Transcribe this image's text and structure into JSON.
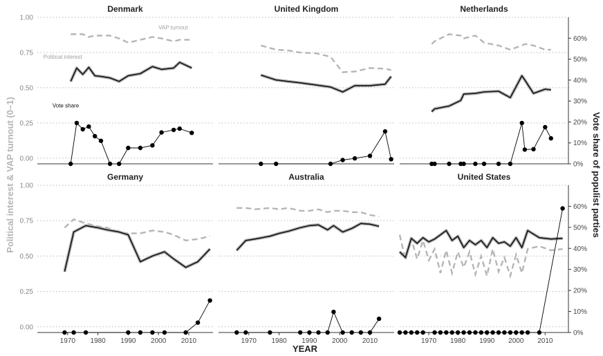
{
  "chart_data": {
    "type": "line",
    "xlabel": "YEAR",
    "ylabel": "Political interest & VAP turnout (0–1)",
    "y2label": "Vote share of populist parties",
    "xlim": [
      1960,
      2018
    ],
    "ylim": [
      -0.04,
      1.0
    ],
    "y2lim": [
      0,
      70
    ],
    "x_ticks": [
      1970,
      1980,
      1990,
      2000,
      2010
    ],
    "x_tick_labels": [
      "1970",
      "1980",
      "1990",
      "2000",
      "2010"
    ],
    "y_ticks": [
      0,
      0.25,
      0.5,
      0.75,
      1.0
    ],
    "y_tick_labels": [
      "0.00",
      "0.25",
      "0.50",
      "0.75",
      "1.00"
    ],
    "y2_ticks": [
      0,
      10,
      20,
      30,
      40,
      50,
      60
    ],
    "y2_tick_labels": [
      "0%",
      "10%",
      "20%",
      "30%",
      "40%",
      "50%",
      "60%"
    ],
    "grid": "horizontal dotted",
    "colors": {
      "interest": "#111111",
      "interest_band": "#b5b5b5",
      "turnout": "#b5b5b5",
      "vote": "#000000"
    },
    "annotations": {
      "turnout": "VAP turnout",
      "interest": "Political interest",
      "vote": "Vote share"
    },
    "panels": [
      {
        "title": "Denmark",
        "interest": [
          [
            1971,
            0.545
          ],
          [
            1973,
            0.64
          ],
          [
            1975,
            0.595
          ],
          [
            1977,
            0.645
          ],
          [
            1979,
            0.585
          ],
          [
            1981,
            0.58
          ],
          [
            1984,
            0.57
          ],
          [
            1987,
            0.545
          ],
          [
            1990,
            0.585
          ],
          [
            1994,
            0.6
          ],
          [
            1998,
            0.65
          ],
          [
            2001,
            0.63
          ],
          [
            2005,
            0.64
          ],
          [
            2007,
            0.68
          ],
          [
            2011,
            0.64
          ]
        ],
        "turnout": [
          [
            1971,
            0.88
          ],
          [
            1975,
            0.88
          ],
          [
            1977,
            0.86
          ],
          [
            1979,
            0.87
          ],
          [
            1984,
            0.87
          ],
          [
            1987,
            0.85
          ],
          [
            1990,
            0.82
          ],
          [
            1994,
            0.84
          ],
          [
            1998,
            0.86
          ],
          [
            2001,
            0.85
          ],
          [
            2005,
            0.83
          ],
          [
            2007,
            0.84
          ],
          [
            2011,
            0.84
          ]
        ],
        "vote": [
          [
            1971,
            0
          ],
          [
            1973,
            19.5
          ],
          [
            1975,
            16.5
          ],
          [
            1977,
            17.8
          ],
          [
            1979,
            13.2
          ],
          [
            1981,
            11.0
          ],
          [
            1984,
            0
          ],
          [
            1987,
            0
          ],
          [
            1990,
            7.6
          ],
          [
            1994,
            7.6
          ],
          [
            1998,
            8.8
          ],
          [
            2001,
            15.0
          ],
          [
            2005,
            16.2
          ],
          [
            2007,
            16.8
          ],
          [
            2011,
            14.8
          ]
        ]
      },
      {
        "title": "United Kingdom",
        "interest": [
          [
            1974,
            0.59
          ],
          [
            1979,
            0.555
          ],
          [
            1983,
            0.545
          ],
          [
            1987,
            0.535
          ],
          [
            1992,
            0.52
          ],
          [
            1997,
            0.505
          ],
          [
            2001,
            0.47
          ],
          [
            2005,
            0.515
          ],
          [
            2010,
            0.515
          ],
          [
            2015,
            0.525
          ],
          [
            2017,
            0.58
          ]
        ],
        "turnout": [
          [
            1974,
            0.8
          ],
          [
            1979,
            0.77
          ],
          [
            1983,
            0.765
          ],
          [
            1987,
            0.75
          ],
          [
            1992,
            0.745
          ],
          [
            1997,
            0.72
          ],
          [
            2001,
            0.61
          ],
          [
            2005,
            0.615
          ],
          [
            2010,
            0.64
          ],
          [
            2015,
            0.635
          ],
          [
            2017,
            0.625
          ]
        ],
        "vote": [
          [
            1974,
            0
          ],
          [
            1979,
            0
          ],
          [
            1997,
            0
          ],
          [
            2001,
            1.8
          ],
          [
            2005,
            2.6
          ],
          [
            2010,
            3.8
          ],
          [
            2015,
            15.5
          ],
          [
            2017,
            2.2
          ]
        ]
      },
      {
        "title": "Netherlands",
        "interest": [
          [
            1971,
            0.33
          ],
          [
            1972,
            0.35
          ],
          [
            1977,
            0.37
          ],
          [
            1981,
            0.41
          ],
          [
            1982,
            0.455
          ],
          [
            1986,
            0.46
          ],
          [
            1989,
            0.47
          ],
          [
            1994,
            0.475
          ],
          [
            1998,
            0.43
          ],
          [
            2002,
            0.585
          ],
          [
            2003,
            0.555
          ],
          [
            2006,
            0.46
          ],
          [
            2010,
            0.49
          ],
          [
            2012,
            0.485
          ]
        ],
        "turnout": [
          [
            1971,
            0.81
          ],
          [
            1972,
            0.83
          ],
          [
            1977,
            0.88
          ],
          [
            1981,
            0.87
          ],
          [
            1982,
            0.85
          ],
          [
            1986,
            0.87
          ],
          [
            1989,
            0.82
          ],
          [
            1994,
            0.8
          ],
          [
            1998,
            0.77
          ],
          [
            2002,
            0.8
          ],
          [
            2003,
            0.81
          ],
          [
            2006,
            0.8
          ],
          [
            2010,
            0.77
          ],
          [
            2012,
            0.77
          ]
        ],
        "vote": [
          [
            1971,
            0
          ],
          [
            1972,
            0
          ],
          [
            1977,
            0
          ],
          [
            1981,
            0
          ],
          [
            1982,
            0
          ],
          [
            1986,
            0
          ],
          [
            1989,
            0
          ],
          [
            1994,
            0
          ],
          [
            1998,
            0
          ],
          [
            2002,
            19.5
          ],
          [
            2003,
            6.8
          ],
          [
            2006,
            7.0
          ],
          [
            2010,
            17.5
          ],
          [
            2012,
            12.2
          ]
        ]
      },
      {
        "title": "Germany",
        "interest": [
          [
            1969,
            0.39
          ],
          [
            1972,
            0.67
          ],
          [
            1976,
            0.715
          ],
          [
            1980,
            0.7
          ],
          [
            1983,
            0.685
          ],
          [
            1987,
            0.67
          ],
          [
            1990,
            0.65
          ],
          [
            1994,
            0.46
          ],
          [
            1998,
            0.5
          ],
          [
            2002,
            0.53
          ],
          [
            2005,
            0.48
          ],
          [
            2009,
            0.42
          ],
          [
            2013,
            0.46
          ],
          [
            2017,
            0.55
          ]
        ],
        "turnout": [
          [
            1969,
            0.7
          ],
          [
            1972,
            0.76
          ],
          [
            1976,
            0.73
          ],
          [
            1980,
            0.71
          ],
          [
            1983,
            0.7
          ],
          [
            1987,
            0.67
          ],
          [
            1990,
            0.66
          ],
          [
            1994,
            0.66
          ],
          [
            1998,
            0.68
          ],
          [
            2002,
            0.67
          ],
          [
            2005,
            0.65
          ],
          [
            2009,
            0.61
          ],
          [
            2013,
            0.62
          ],
          [
            2017,
            0.64
          ]
        ],
        "vote": [
          [
            1969,
            0
          ],
          [
            1972,
            0
          ],
          [
            1976,
            0
          ],
          [
            1990,
            0
          ],
          [
            1994,
            0
          ],
          [
            1998,
            0
          ],
          [
            2002,
            0
          ],
          [
            2009,
            0
          ],
          [
            2013,
            4.7
          ],
          [
            2017,
            15.2
          ]
        ]
      },
      {
        "title": "Australia",
        "interest": [
          [
            1966,
            0.54
          ],
          [
            1969,
            0.61
          ],
          [
            1972,
            0.62
          ],
          [
            1977,
            0.64
          ],
          [
            1980,
            0.66
          ],
          [
            1983,
            0.675
          ],
          [
            1987,
            0.7
          ],
          [
            1990,
            0.715
          ],
          [
            1993,
            0.72
          ],
          [
            1996,
            0.685
          ],
          [
            1998,
            0.715
          ],
          [
            2001,
            0.67
          ],
          [
            2004,
            0.695
          ],
          [
            2007,
            0.73
          ],
          [
            2010,
            0.725
          ],
          [
            2013,
            0.71
          ]
        ],
        "turnout": [
          [
            1966,
            0.84
          ],
          [
            1969,
            0.84
          ],
          [
            1972,
            0.83
          ],
          [
            1977,
            0.84
          ],
          [
            1980,
            0.83
          ],
          [
            1983,
            0.84
          ],
          [
            1987,
            0.82
          ],
          [
            1990,
            0.82
          ],
          [
            1993,
            0.83
          ],
          [
            1996,
            0.81
          ],
          [
            1998,
            0.82
          ],
          [
            2001,
            0.82
          ],
          [
            2004,
            0.81
          ],
          [
            2007,
            0.81
          ],
          [
            2010,
            0.79
          ],
          [
            2013,
            0.78
          ]
        ],
        "vote": [
          [
            1966,
            0
          ],
          [
            1969,
            0
          ],
          [
            1977,
            0
          ],
          [
            1987,
            0
          ],
          [
            1990,
            0
          ],
          [
            1993,
            0
          ],
          [
            1996,
            0
          ],
          [
            1998,
            9.8
          ],
          [
            2001,
            0
          ],
          [
            2004,
            0
          ],
          [
            2007,
            0
          ],
          [
            2010,
            0
          ],
          [
            2013,
            6.5
          ]
        ]
      },
      {
        "title": "United States",
        "interest": [
          [
            1960,
            0.53
          ],
          [
            1962,
            0.49
          ],
          [
            1964,
            0.625
          ],
          [
            1966,
            0.59
          ],
          [
            1968,
            0.63
          ],
          [
            1970,
            0.6
          ],
          [
            1972,
            0.62
          ],
          [
            1974,
            0.65
          ],
          [
            1976,
            0.68
          ],
          [
            1978,
            0.61
          ],
          [
            1980,
            0.64
          ],
          [
            1982,
            0.56
          ],
          [
            1984,
            0.61
          ],
          [
            1986,
            0.58
          ],
          [
            1988,
            0.61
          ],
          [
            1990,
            0.56
          ],
          [
            1992,
            0.63
          ],
          [
            1994,
            0.59
          ],
          [
            1996,
            0.6
          ],
          [
            1998,
            0.57
          ],
          [
            2000,
            0.63
          ],
          [
            2002,
            0.56
          ],
          [
            2004,
            0.68
          ],
          [
            2008,
            0.63
          ],
          [
            2012,
            0.62
          ],
          [
            2016,
            0.625
          ]
        ],
        "turnout": [
          [
            1960,
            0.65
          ],
          [
            1962,
            0.47
          ],
          [
            1964,
            0.62
          ],
          [
            1966,
            0.48
          ],
          [
            1968,
            0.61
          ],
          [
            1970,
            0.47
          ],
          [
            1972,
            0.55
          ],
          [
            1974,
            0.38
          ],
          [
            1976,
            0.54
          ],
          [
            1978,
            0.38
          ],
          [
            1980,
            0.53
          ],
          [
            1982,
            0.42
          ],
          [
            1984,
            0.53
          ],
          [
            1986,
            0.37
          ],
          [
            1988,
            0.5
          ],
          [
            1990,
            0.36
          ],
          [
            1992,
            0.55
          ],
          [
            1994,
            0.39
          ],
          [
            1996,
            0.49
          ],
          [
            1998,
            0.36
          ],
          [
            2000,
            0.51
          ],
          [
            2002,
            0.38
          ],
          [
            2004,
            0.55
          ],
          [
            2008,
            0.57
          ],
          [
            2012,
            0.54
          ],
          [
            2016,
            0.55
          ]
        ],
        "vote": [
          [
            1960,
            0
          ],
          [
            1962,
            0
          ],
          [
            1964,
            0
          ],
          [
            1966,
            0
          ],
          [
            1968,
            0
          ],
          [
            1972,
            0
          ],
          [
            1974,
            0
          ],
          [
            1976,
            0
          ],
          [
            1978,
            0
          ],
          [
            1980,
            0
          ],
          [
            1982,
            0
          ],
          [
            1984,
            0
          ],
          [
            1986,
            0
          ],
          [
            1988,
            0
          ],
          [
            1990,
            0
          ],
          [
            1992,
            0
          ],
          [
            1994,
            0
          ],
          [
            1996,
            0
          ],
          [
            1998,
            0
          ],
          [
            2000,
            0
          ],
          [
            2002,
            0
          ],
          [
            2004,
            0
          ],
          [
            2008,
            0
          ],
          [
            2016,
            59
          ]
        ]
      }
    ]
  }
}
